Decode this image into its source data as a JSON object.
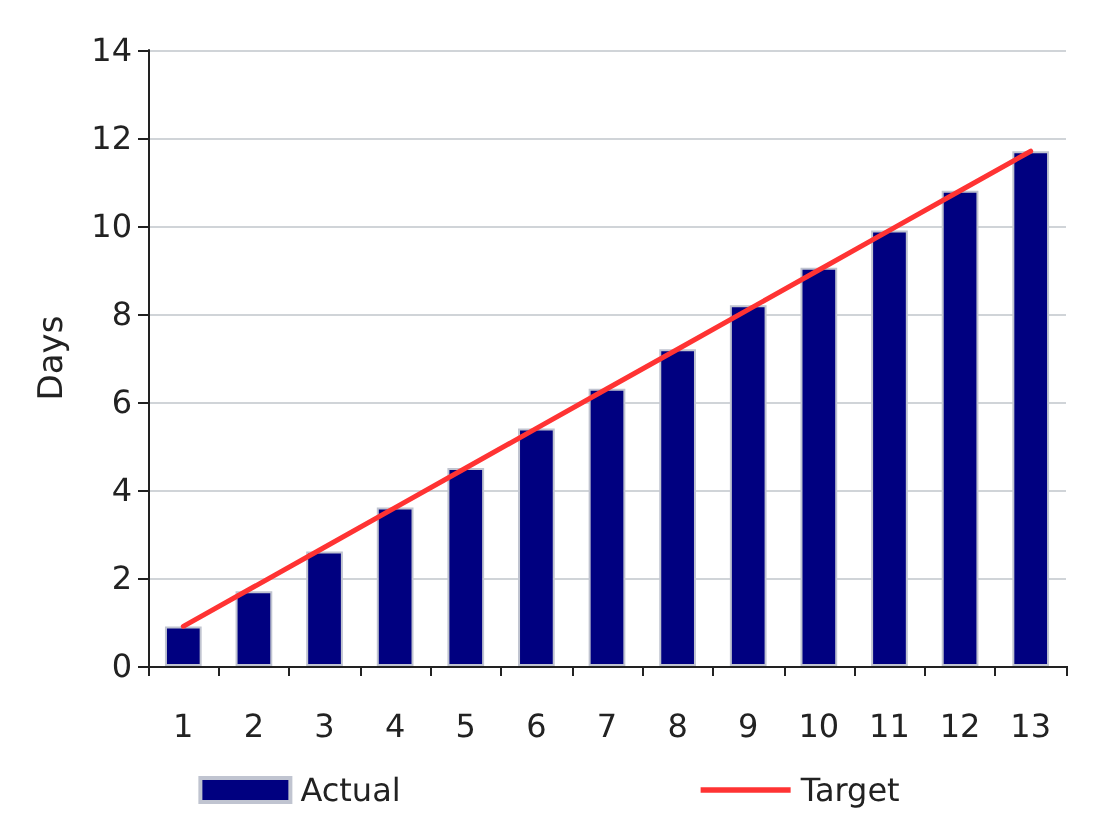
{
  "chart_data": {
    "type": "bar",
    "ylabel": "Days",
    "categories": [
      "1",
      "2",
      "3",
      "4",
      "5",
      "6",
      "7",
      "8",
      "9",
      "10",
      "11",
      "12",
      "13"
    ],
    "series": [
      {
        "name": "Actual",
        "color": "#000080",
        "values": [
          0.9,
          1.7,
          2.6,
          3.6,
          4.5,
          5.4,
          6.3,
          7.2,
          8.2,
          9.05,
          9.9,
          10.8,
          11.7
        ]
      },
      {
        "name": "Target",
        "type": "line",
        "color": "#ff3333",
        "values": [
          0.9,
          1.8,
          2.7,
          3.6,
          4.5,
          5.4,
          6.3,
          7.2,
          8.1,
          9.0,
          9.9,
          10.8,
          11.7
        ]
      }
    ],
    "ylim": [
      0,
      14
    ],
    "yticks": [
      0,
      2,
      4,
      6,
      8,
      10,
      12,
      14
    ],
    "grid": "y",
    "legend": "bottom",
    "marker": "none",
    "line_style": "solid"
  }
}
